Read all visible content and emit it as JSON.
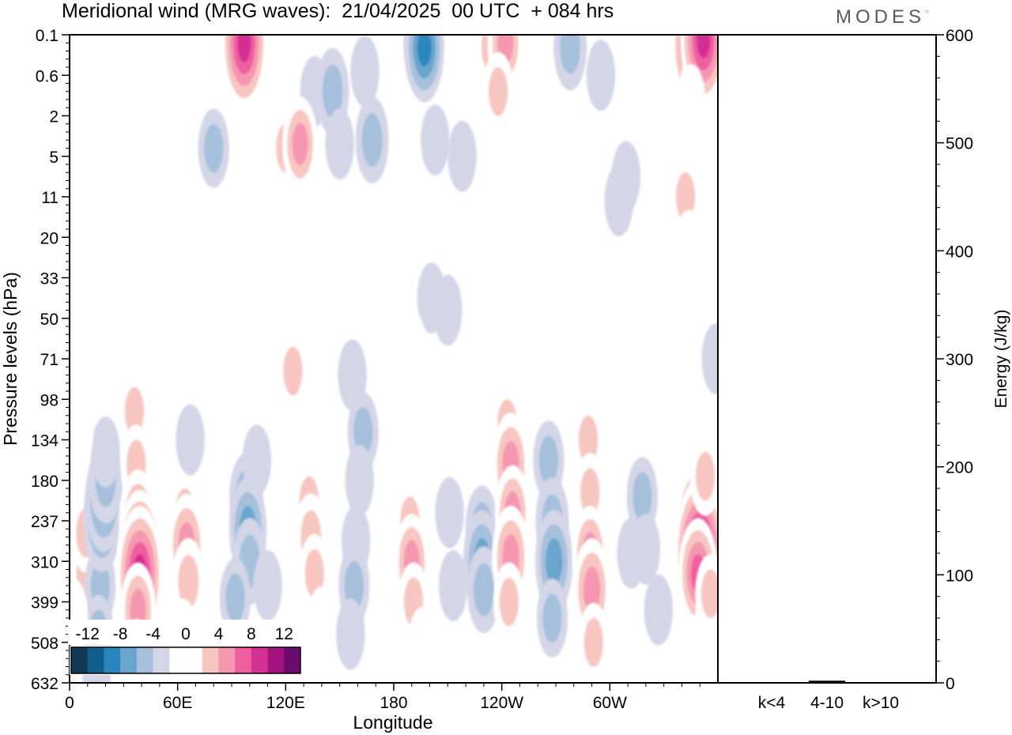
{
  "header": {
    "title": "Meridional wind (MRG waves):  21/04/2025  00 UTC  + 084 hrs",
    "logo_text": "MODES"
  },
  "chart_data": [
    {
      "type": "heatmap",
      "title": "Meridional wind (MRG waves):  21/04/2025  00 UTC  + 084 hrs",
      "xlabel": "Longitude",
      "ylabel": "Pressure levels (hPa)",
      "x_ticks": [
        "0",
        "60E",
        "120E",
        "180",
        "120W",
        "60W"
      ],
      "x_tick_values": [
        0,
        60,
        120,
        180,
        240,
        300
      ],
      "xlim": [
        0,
        360
      ],
      "y_ticks": [
        "0.1",
        "0.6",
        "2",
        "5",
        "11",
        "20",
        "33",
        "50",
        "71",
        "98",
        "134",
        "180",
        "237",
        "310",
        "399",
        "508",
        "632"
      ],
      "colorbar": {
        "labels": [
          "-12",
          "-8",
          "-4",
          "0",
          "4",
          "8",
          "12"
        ],
        "levels": [
          -14,
          -12,
          -10,
          -8,
          -6,
          -4,
          -2,
          2,
          4,
          6,
          8,
          10,
          12,
          14
        ],
        "colors": [
          "#123a56",
          "#0f5e8c",
          "#2a86bd",
          "#69a5cd",
          "#a6c0dc",
          "#d4d6e8",
          "#ffffff",
          "#ffffff",
          "#f8c6c1",
          "#f597b0",
          "#ee5fa0",
          "#d42f92",
          "#a3137e",
          "#6b0a70"
        ]
      },
      "cells": [
        {
          "lon": 9,
          "lev": 13.3,
          "v": 4
        },
        {
          "lon": 9,
          "lev": 12.3,
          "v": 4
        },
        {
          "lon": 17,
          "lev": 13.6,
          "v": -4
        },
        {
          "lon": 18,
          "lev": 12.0,
          "v": -7
        },
        {
          "lon": 19,
          "lev": 11.5,
          "v": -7
        },
        {
          "lon": 20,
          "lev": 11.0,
          "v": -5
        },
        {
          "lon": 20,
          "lev": 10.3,
          "v": -3
        },
        {
          "lon": 16,
          "lev": 14.8,
          "v": -4
        },
        {
          "lon": 15,
          "lev": 15.7,
          "v": -3
        },
        {
          "lon": 36,
          "lev": 9.3,
          "v": 4
        },
        {
          "lon": 37,
          "lev": 10.6,
          "v": 4
        },
        {
          "lon": 38,
          "lev": 12.0,
          "v": 7
        },
        {
          "lon": 39,
          "lev": 12.8,
          "v": 10
        },
        {
          "lon": 39,
          "lev": 13.3,
          "v": 11
        },
        {
          "lon": 38,
          "lev": 14.2,
          "v": 6
        },
        {
          "lon": 37,
          "lev": 15.3,
          "v": 3
        },
        {
          "lon": 64,
          "lev": 11.8,
          "v": 4
        },
        {
          "lon": 65,
          "lev": 12.6,
          "v": 7
        },
        {
          "lon": 66,
          "lev": 13.5,
          "v": 5
        },
        {
          "lon": 63,
          "lev": 14.8,
          "v": 3
        },
        {
          "lon": 67,
          "lev": 10.0,
          "v": -3
        },
        {
          "lon": 98,
          "lev": 11.4,
          "v": -5
        },
        {
          "lon": 99,
          "lev": 12.2,
          "v": -7
        },
        {
          "lon": 100,
          "lev": 13.0,
          "v": -5
        },
        {
          "lon": 92,
          "lev": 13.9,
          "v": -4
        },
        {
          "lon": 104,
          "lev": 10.5,
          "v": -3
        },
        {
          "lon": 110,
          "lev": 13.6,
          "v": -3
        },
        {
          "lon": 133,
          "lev": 11.5,
          "v": 4
        },
        {
          "lon": 134,
          "lev": 12.4,
          "v": 5
        },
        {
          "lon": 136,
          "lev": 13.3,
          "v": 4
        },
        {
          "lon": 140,
          "lev": 14.5,
          "v": 3
        },
        {
          "lon": 163,
          "lev": 9.8,
          "v": -4
        },
        {
          "lon": 161,
          "lev": 11.0,
          "v": -3
        },
        {
          "lon": 159,
          "lev": 12.5,
          "v": -3
        },
        {
          "lon": 158,
          "lev": 13.6,
          "v": -4
        },
        {
          "lon": 156,
          "lev": 14.8,
          "v": -3
        },
        {
          "lon": 189,
          "lev": 12.0,
          "v": 4
        },
        {
          "lon": 190,
          "lev": 13.0,
          "v": 6
        },
        {
          "lon": 191,
          "lev": 14.0,
          "v": 4
        },
        {
          "lon": 196,
          "lev": 15.0,
          "v": 3
        },
        {
          "lon": 211,
          "lev": 11.8,
          "v": -3
        },
        {
          "lon": 213,
          "lev": 13.6,
          "v": -3
        },
        {
          "lon": 229,
          "lev": 12.2,
          "v": -5
        },
        {
          "lon": 229,
          "lev": 13.0,
          "v": -7
        },
        {
          "lon": 230,
          "lev": 13.7,
          "v": -5
        },
        {
          "lon": 243,
          "lev": 9.6,
          "v": 4
        },
        {
          "lon": 245,
          "lev": 10.6,
          "v": 7
        },
        {
          "lon": 246,
          "lev": 11.8,
          "v": 6
        },
        {
          "lon": 245,
          "lev": 12.9,
          "v": 7
        },
        {
          "lon": 244,
          "lev": 14.0,
          "v": 4
        },
        {
          "lon": 266,
          "lev": 10.5,
          "v": -4
        },
        {
          "lon": 268,
          "lev": 12.0,
          "v": -5
        },
        {
          "lon": 269,
          "lev": 13.0,
          "v": -7
        },
        {
          "lon": 268,
          "lev": 14.4,
          "v": -4
        },
        {
          "lon": 288,
          "lev": 10.0,
          "v": 4
        },
        {
          "lon": 289,
          "lev": 11.3,
          "v": 4
        },
        {
          "lon": 289,
          "lev": 12.8,
          "v": 6
        },
        {
          "lon": 290,
          "lev": 13.7,
          "v": 7
        },
        {
          "lon": 291,
          "lev": 15.0,
          "v": 4
        },
        {
          "lon": 318,
          "lev": 11.4,
          "v": -4
        },
        {
          "lon": 320,
          "lev": 12.7,
          "v": -3
        },
        {
          "lon": 349,
          "lev": 11.6,
          "v": 6
        },
        {
          "lon": 349,
          "lev": 12.2,
          "v": 11
        },
        {
          "lon": 350,
          "lev": 12.8,
          "v": 13
        },
        {
          "lon": 349,
          "lev": 13.3,
          "v": 8
        },
        {
          "lon": 355,
          "lev": 14.6,
          "v": 3
        },
        {
          "lon": 12,
          "lev": 0.9,
          "v": 3
        },
        {
          "lon": 50,
          "lev": 2.0,
          "v": 3
        },
        {
          "lon": 60,
          "lev": 0.5,
          "v": 3
        },
        {
          "lon": 96,
          "lev": 0.3,
          "v": 8
        },
        {
          "lon": 97,
          "lev": 0.2,
          "v": 11
        },
        {
          "lon": 136,
          "lev": 1.4,
          "v": -3
        },
        {
          "lon": 146,
          "lev": 1.4,
          "v": -5
        },
        {
          "lon": 150,
          "lev": 2.7,
          "v": -3
        },
        {
          "lon": 168,
          "lev": 2.6,
          "v": -5
        },
        {
          "lon": 164,
          "lev": 0.9,
          "v": -3
        },
        {
          "lon": 196,
          "lev": 0.2,
          "v": -7
        },
        {
          "lon": 197,
          "lev": 0.3,
          "v": -8
        },
        {
          "lon": 234,
          "lev": 0.3,
          "v": 4
        },
        {
          "lon": 242,
          "lev": 0.2,
          "v": 6
        },
        {
          "lon": 278,
          "lev": 0.3,
          "v": -5
        },
        {
          "lon": 295,
          "lev": 1.0,
          "v": -3
        },
        {
          "lon": 345,
          "lev": 0.3,
          "v": 8
        },
        {
          "lon": 352,
          "lev": 0.1,
          "v": 11
        },
        {
          "lon": 80,
          "lev": 2.8,
          "v": -4
        },
        {
          "lon": 120,
          "lev": 2.8,
          "v": 4
        },
        {
          "lon": 128,
          "lev": 2.7,
          "v": 6
        },
        {
          "lon": 203,
          "lev": 2.6,
          "v": -3
        },
        {
          "lon": 218,
          "lev": 3.0,
          "v": -3
        },
        {
          "lon": 238,
          "lev": 1.4,
          "v": 4
        },
        {
          "lon": 275,
          "lev": 2.9,
          "v": 3
        },
        {
          "lon": 320,
          "lev": 2.6,
          "v": 3
        },
        {
          "lon": 345,
          "lev": 1.6,
          "v": 3
        },
        {
          "lon": 348,
          "lev": 3.1,
          "v": 3
        },
        {
          "lon": 342,
          "lev": 4.0,
          "v": 4
        },
        {
          "lon": 309,
          "lev": 3.5,
          "v": -3
        },
        {
          "lon": 305,
          "lev": 4.1,
          "v": -3
        },
        {
          "lon": 344,
          "lev": 5.2,
          "v": 3
        },
        {
          "lon": 347,
          "lev": 5.6,
          "v": 3
        },
        {
          "lon": 35,
          "lev": 6.0,
          "v": 3
        },
        {
          "lon": 38,
          "lev": 6.4,
          "v": 3
        },
        {
          "lon": 201,
          "lev": 6.5,
          "v": -3
        },
        {
          "lon": 210,
          "lev": 6.8,
          "v": -3
        },
        {
          "lon": 335,
          "lev": 7.9,
          "v": 3
        },
        {
          "lon": 347,
          "lev": 6.4,
          "v": 3
        },
        {
          "lon": 124,
          "lev": 8.3,
          "v": 4
        },
        {
          "lon": 190,
          "lev": 7.7,
          "v": 3
        },
        {
          "lon": 190,
          "lev": 8.5,
          "v": 3
        },
        {
          "lon": 300,
          "lev": 6.1,
          "v": 3
        },
        {
          "lon": 270,
          "lev": 8.0,
          "v": 3
        },
        {
          "lon": 157,
          "lev": 8.4,
          "v": -3
        },
        {
          "lon": 359,
          "lev": 8.0,
          "v": -3
        },
        {
          "lon": 5,
          "lev": 9.8,
          "v": 3
        },
        {
          "lon": 2,
          "lev": 14.3,
          "v": 3
        },
        {
          "lon": 327,
          "lev": 14.2,
          "v": -3
        },
        {
          "lon": 312,
          "lev": 12.8,
          "v": -3
        },
        {
          "lon": 353,
          "lev": 10.9,
          "v": 4
        },
        {
          "lon": 356,
          "lev": 13.8,
          "v": 4
        }
      ]
    },
    {
      "type": "bar",
      "categories": [
        "k<4",
        "4-10",
        "k>10"
      ],
      "values": [
        0.3,
        2.0,
        0.3
      ],
      "ylabel": "Energy (J/kg)",
      "ylim": [
        0,
        600
      ],
      "y_ticks": [
        "0",
        "100",
        "200",
        "300",
        "400",
        "500",
        "600"
      ],
      "y_tick_values": [
        0,
        100,
        200,
        300,
        400,
        500,
        600
      ]
    }
  ]
}
